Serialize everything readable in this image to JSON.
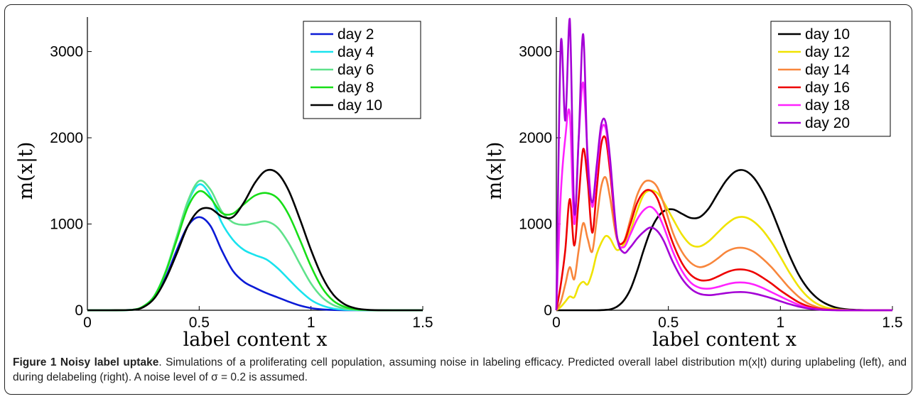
{
  "caption": {
    "label": "Figure 1",
    "title": "Noisy label uptake",
    "text": ". Simulations of a proliferating cell population, assuming noise in labeling efficacy. Predicted overall label distribution m(x|t) during uplabeling (left), and during delabeling (right). A noise level of σ = 0.2 is assumed."
  },
  "chart_data": [
    {
      "type": "line",
      "xlabel": "label content x",
      "ylabel": "m(x|t)",
      "xlim": [
        0,
        1.5
      ],
      "ylim": [
        0,
        3400
      ],
      "xticks": [
        "0",
        "0.5",
        "1",
        "1.5"
      ],
      "yticks": [
        "0",
        "1000",
        "2000",
        "3000"
      ],
      "legend_position": "top-right",
      "x": [
        0,
        0.1,
        0.2,
        0.25,
        0.3,
        0.35,
        0.4,
        0.45,
        0.5,
        0.55,
        0.6,
        0.65,
        0.7,
        0.75,
        0.8,
        0.85,
        0.9,
        0.95,
        1.0,
        1.05,
        1.1,
        1.15,
        1.2,
        1.25,
        1.3,
        1.4,
        1.5
      ],
      "series": [
        {
          "name": "day 2",
          "color": "#0b1ad6",
          "values": [
            0,
            0,
            5,
            40,
            150,
            380,
            700,
            980,
            1080,
            980,
            700,
            460,
            330,
            260,
            200,
            150,
            100,
            55,
            25,
            10,
            3,
            1,
            0,
            0,
            0,
            0,
            0
          ]
        },
        {
          "name": "day 4",
          "color": "#19e3ee",
          "values": [
            0,
            0,
            5,
            45,
            170,
            450,
            850,
            1250,
            1460,
            1330,
            1020,
            820,
            700,
            640,
            590,
            490,
            360,
            230,
            120,
            55,
            20,
            6,
            2,
            0,
            0,
            0,
            0
          ]
        },
        {
          "name": "day 6",
          "color": "#5fe28a",
          "values": [
            0,
            0,
            5,
            45,
            170,
            450,
            860,
            1270,
            1500,
            1400,
            1150,
            1020,
            990,
            1010,
            1030,
            960,
            780,
            540,
            310,
            150,
            60,
            20,
            6,
            2,
            0,
            0,
            0
          ]
        },
        {
          "name": "day 8",
          "color": "#17de17",
          "values": [
            0,
            0,
            5,
            45,
            165,
            440,
            820,
            1200,
            1380,
            1300,
            1130,
            1120,
            1230,
            1330,
            1360,
            1300,
            1110,
            820,
            510,
            260,
            110,
            40,
            12,
            3,
            0,
            0,
            0
          ]
        },
        {
          "name": "day 10",
          "color": "#000000",
          "values": [
            0,
            0,
            4,
            35,
            140,
            360,
            660,
            980,
            1160,
            1180,
            1090,
            1080,
            1250,
            1480,
            1620,
            1590,
            1390,
            1060,
            700,
            390,
            180,
            70,
            22,
            6,
            1,
            0,
            0
          ]
        }
      ]
    },
    {
      "type": "line",
      "xlabel": "label content x",
      "ylabel": "m(x|t)",
      "xlim": [
        0,
        1.5
      ],
      "ylim": [
        0,
        3400
      ],
      "xticks": [
        "0",
        "0.5",
        "1",
        "1.5"
      ],
      "yticks": [
        "0",
        "1000",
        "2000",
        "3000"
      ],
      "legend_position": "top-right",
      "x": [
        0,
        0.02,
        0.04,
        0.06,
        0.08,
        0.1,
        0.12,
        0.14,
        0.16,
        0.18,
        0.2,
        0.22,
        0.24,
        0.27,
        0.3,
        0.33,
        0.36,
        0.39,
        0.42,
        0.45,
        0.48,
        0.52,
        0.56,
        0.6,
        0.64,
        0.68,
        0.72,
        0.76,
        0.8,
        0.84,
        0.88,
        0.92,
        0.96,
        1.0,
        1.04,
        1.08,
        1.12,
        1.16,
        1.2,
        1.25,
        1.3,
        1.35,
        1.4,
        1.5
      ],
      "series": [
        {
          "name": "day 10",
          "color": "#000000",
          "values": [
            0,
            0,
            0,
            0,
            0,
            0,
            0,
            0,
            0,
            0,
            2,
            5,
            10,
            40,
            110,
            240,
            450,
            700,
            920,
            1070,
            1150,
            1170,
            1120,
            1070,
            1080,
            1180,
            1350,
            1510,
            1610,
            1620,
            1540,
            1380,
            1160,
            900,
            640,
            420,
            260,
            150,
            80,
            30,
            10,
            3,
            0,
            0
          ]
        },
        {
          "name": "day 12",
          "color": "#f0e300",
          "values": [
            0,
            40,
            100,
            160,
            150,
            280,
            330,
            300,
            440,
            650,
            780,
            860,
            830,
            700,
            760,
            920,
            1150,
            1340,
            1390,
            1360,
            1250,
            1060,
            880,
            760,
            740,
            800,
            900,
            1000,
            1070,
            1080,
            1030,
            930,
            790,
            620,
            440,
            280,
            160,
            80,
            35,
            12,
            3,
            1,
            0,
            0
          ]
        },
        {
          "name": "day 14",
          "color": "#f8863c",
          "values": [
            0,
            100,
            300,
            500,
            360,
            700,
            1010,
            830,
            680,
            1050,
            1430,
            1540,
            1300,
            830,
            790,
            1050,
            1330,
            1480,
            1500,
            1430,
            1230,
            900,
            680,
            550,
            500,
            530,
            600,
            680,
            720,
            720,
            680,
            600,
            500,
            380,
            260,
            160,
            85,
            40,
            15,
            5,
            1,
            0,
            0,
            0
          ]
        },
        {
          "name": "day 16",
          "color": "#ee0000",
          "values": [
            0,
            300,
            700,
            1290,
            750,
            1300,
            1870,
            1500,
            900,
            1400,
            1920,
            1990,
            1600,
            860,
            790,
            1000,
            1240,
            1370,
            1390,
            1300,
            1080,
            780,
            550,
            410,
            350,
            350,
            390,
            440,
            470,
            470,
            440,
            380,
            310,
            230,
            160,
            95,
            50,
            22,
            8,
            2,
            0,
            0,
            0,
            0
          ]
        },
        {
          "name": "day 18",
          "color": "#ff22ff",
          "values": [
            0,
            1350,
            2000,
            2280,
            1000,
            2000,
            2640,
            1800,
            1200,
            1620,
            2080,
            2110,
            1700,
            860,
            730,
            880,
            1050,
            1160,
            1200,
            1130,
            960,
            680,
            460,
            320,
            260,
            250,
            270,
            300,
            320,
            320,
            300,
            260,
            210,
            160,
            110,
            65,
            32,
            14,
            5,
            1,
            0,
            0,
            0,
            0
          ]
        },
        {
          "name": "day 20",
          "color": "#a400d6",
          "values": [
            0,
            3100,
            2200,
            3380,
            1150,
            2000,
            3200,
            1700,
            1250,
            1680,
            2150,
            2180,
            1750,
            870,
            670,
            730,
            830,
            910,
            960,
            920,
            800,
            560,
            370,
            250,
            190,
            175,
            185,
            200,
            210,
            210,
            195,
            170,
            140,
            105,
            72,
            44,
            22,
            10,
            3,
            1,
            0,
            0,
            0,
            0
          ]
        }
      ]
    }
  ]
}
